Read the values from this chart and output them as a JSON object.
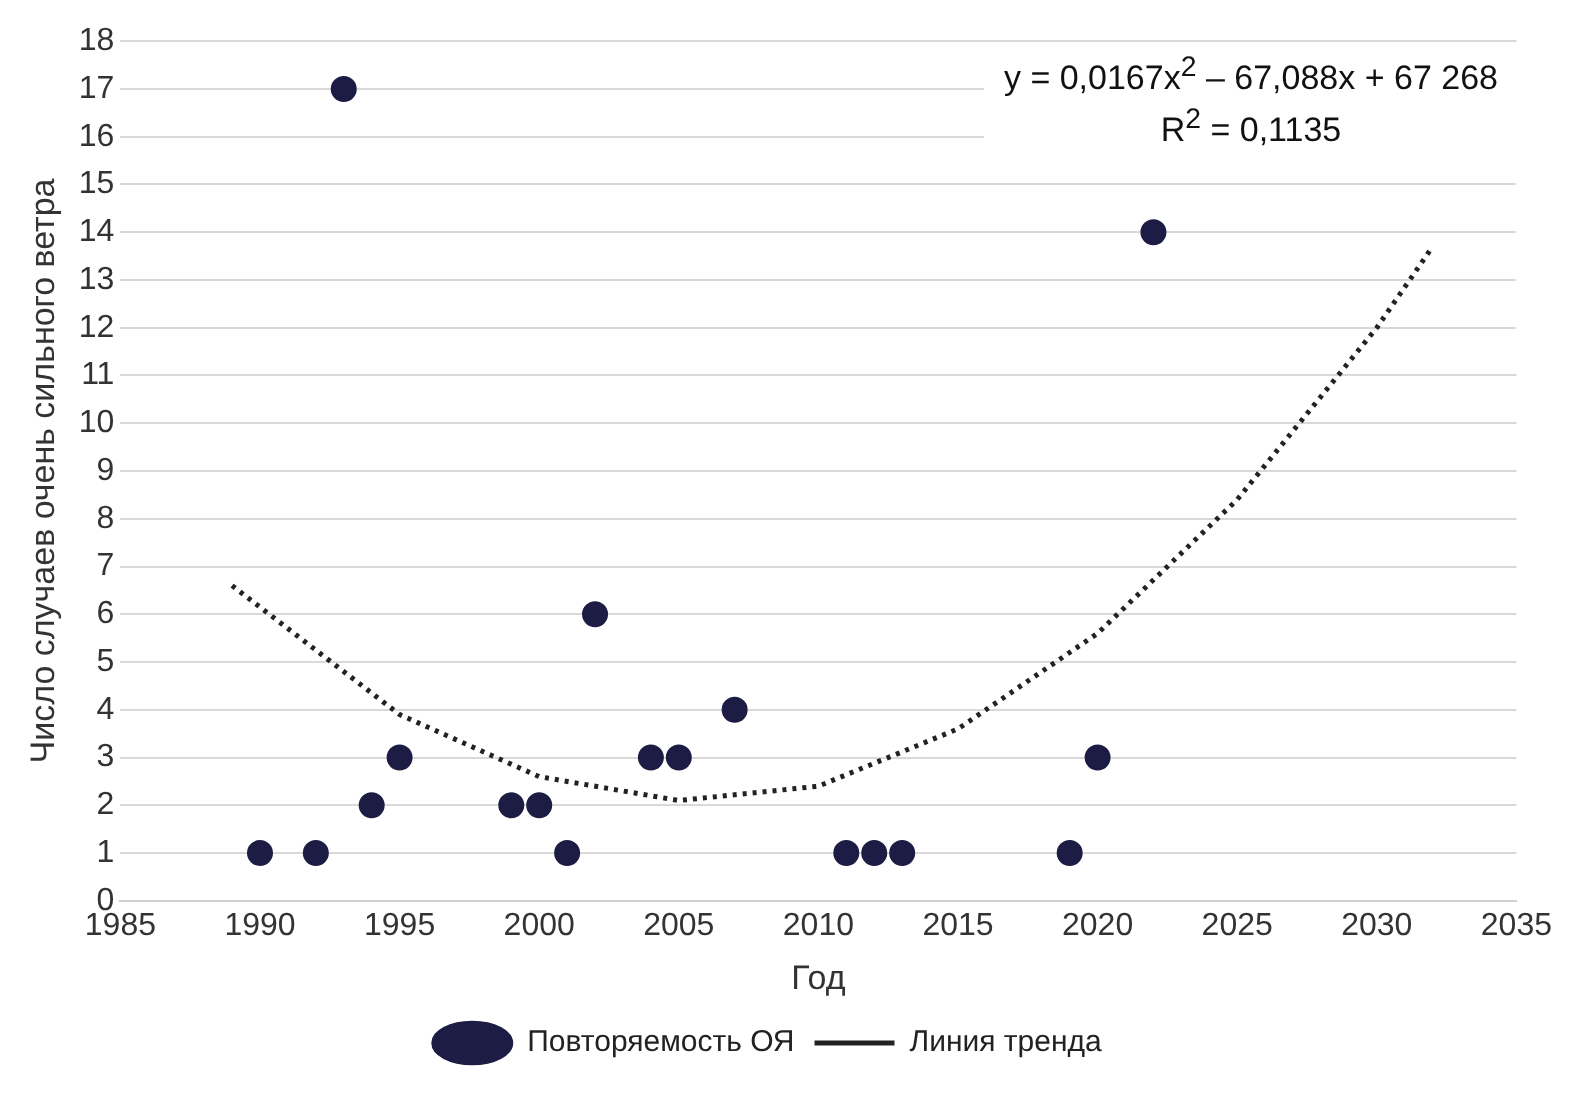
{
  "chart_data": {
    "type": "scatter",
    "xlabel": "Год",
    "ylabel": "Число случаев очень сильного ветра",
    "xlim": [
      1985,
      2035
    ],
    "xticks": [
      1985,
      1990,
      1995,
      2000,
      2005,
      2010,
      2015,
      2020,
      2025,
      2030,
      2035
    ],
    "ylim": [
      0,
      18
    ],
    "yticks": [
      0,
      1,
      2,
      3,
      4,
      5,
      6,
      7,
      8,
      9,
      10,
      11,
      12,
      13,
      14,
      15,
      16,
      17,
      18
    ],
    "grid": "y",
    "legend": "bottom",
    "marker": "circle",
    "annotations": [
      "y = 0,0167x$^{2}$ – 67,088x + 67 268",
      "R$^{2}$ = 0,1135"
    ],
    "series": [
      {
        "name": "Повторяемость ОЯ",
        "color": "#1c1c44",
        "x": [
          1990,
          1992,
          1993,
          1994,
          1995,
          1999,
          2000,
          2001,
          2002,
          2004,
          2005,
          2007,
          2011,
          2012,
          2013,
          2019,
          2020,
          2022
        ],
        "values": [
          1,
          1,
          17,
          2,
          3,
          2,
          2,
          1,
          6,
          3,
          3,
          4,
          1,
          1,
          1,
          1,
          3,
          14
        ]
      },
      {
        "name": "Линия тренда",
        "type": "line",
        "line_style": "dotted",
        "marker": "none",
        "color": "#222222",
        "x": [
          1989,
          1995,
          2000,
          2005,
          2010,
          2015,
          2020,
          2025,
          2030,
          2032
        ],
        "values": [
          6.6,
          3.9,
          2.6,
          2.1,
          2.4,
          3.6,
          5.6,
          8.4,
          12.0,
          13.7
        ]
      }
    ]
  }
}
